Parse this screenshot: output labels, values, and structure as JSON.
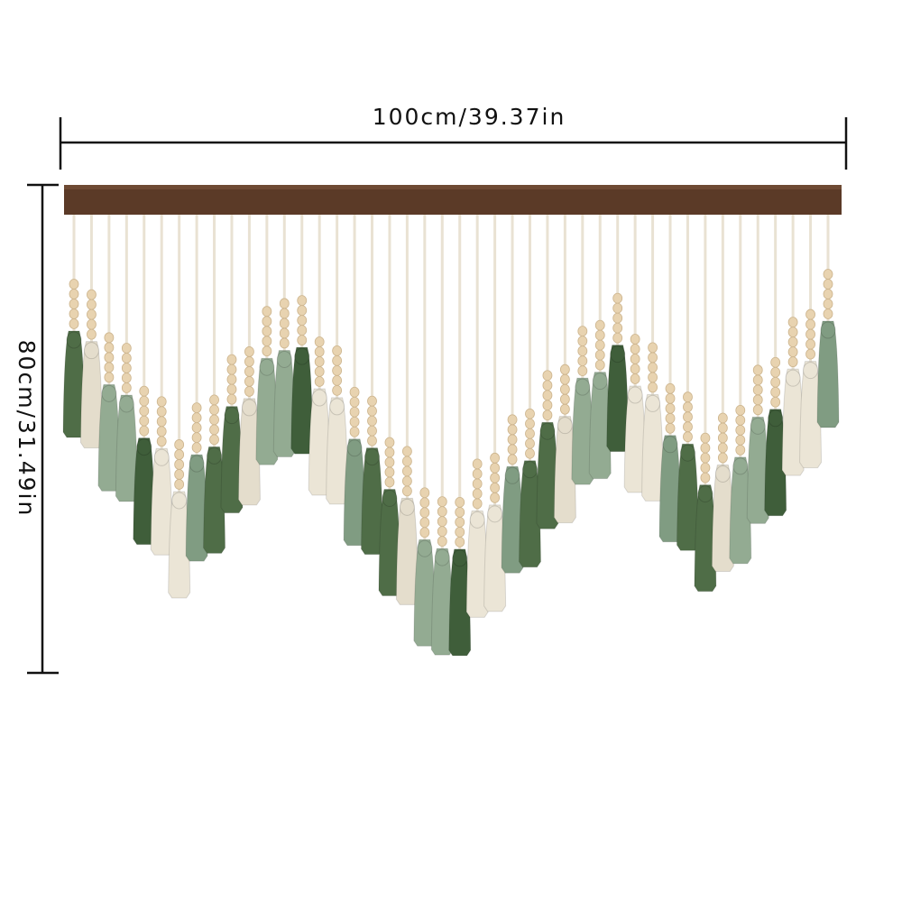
{
  "dimensions": {
    "width": "100cm/39.37in",
    "height": "80cm/31.49in"
  }
}
